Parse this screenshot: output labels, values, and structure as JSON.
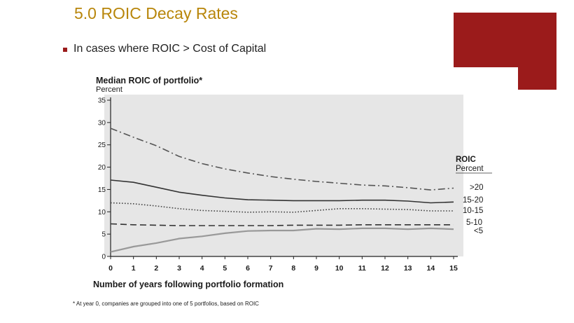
{
  "slide": {
    "title": "5.0 ROIC Decay Rates",
    "bullet": "In cases where ROIC > Cost of Capital"
  },
  "colors": {
    "title": "#b8860b",
    "accent_block": "#9b1b1b",
    "plot_background": "#e6e6e6"
  },
  "chart_data": {
    "type": "line",
    "title": "Median ROIC of portfolio*",
    "ylabel": "Percent",
    "xlabel": "Number of years following portfolio formation",
    "x": [
      0,
      1,
      2,
      3,
      4,
      5,
      6,
      7,
      8,
      9,
      10,
      11,
      12,
      13,
      14,
      15
    ],
    "xlim": [
      0,
      15
    ],
    "ylim": [
      0,
      35
    ],
    "yticks": [
      0,
      5,
      10,
      15,
      20,
      25,
      30,
      35
    ],
    "grid": false,
    "legend": {
      "title": "ROIC",
      "subtitle": "Percent",
      "placement": "right"
    },
    "series": [
      {
        "name": ">20",
        "style": "dashdot",
        "color": "#555555",
        "values": [
          28.7,
          26.7,
          24.8,
          22.4,
          20.8,
          19.6,
          18.7,
          17.9,
          17.3,
          16.8,
          16.4,
          16.0,
          15.8,
          15.4,
          14.9,
          15.3
        ]
      },
      {
        "name": "15-20",
        "style": "solid",
        "color": "#333333",
        "values": [
          17.1,
          16.6,
          15.5,
          14.4,
          13.7,
          13.1,
          12.7,
          12.6,
          12.5,
          12.5,
          12.5,
          12.6,
          12.6,
          12.4,
          12.0,
          12.2
        ]
      },
      {
        "name": "10-15",
        "style": "dotted",
        "color": "#444444",
        "values": [
          12.0,
          11.8,
          11.3,
          10.7,
          10.3,
          10.1,
          9.9,
          10.0,
          9.9,
          10.3,
          10.7,
          10.7,
          10.6,
          10.5,
          10.2,
          10.2
        ]
      },
      {
        "name": "5-10",
        "style": "dashed",
        "color": "#333333",
        "values": [
          7.3,
          7.1,
          7.0,
          6.9,
          6.9,
          6.9,
          6.9,
          6.9,
          7.0,
          7.0,
          7.0,
          7.1,
          7.1,
          7.1,
          7.1,
          7.1
        ]
      },
      {
        "name": "<5",
        "style": "solid",
        "color": "#999999",
        "values": [
          1.0,
          2.2,
          3.0,
          4.0,
          4.5,
          5.2,
          5.7,
          5.8,
          5.8,
          6.2,
          6.1,
          6.3,
          6.3,
          6.1,
          6.3,
          6.1
        ]
      }
    ],
    "footnote": "* At year 0, companies are grouped into one of 5 portfolios, based on ROIC"
  }
}
